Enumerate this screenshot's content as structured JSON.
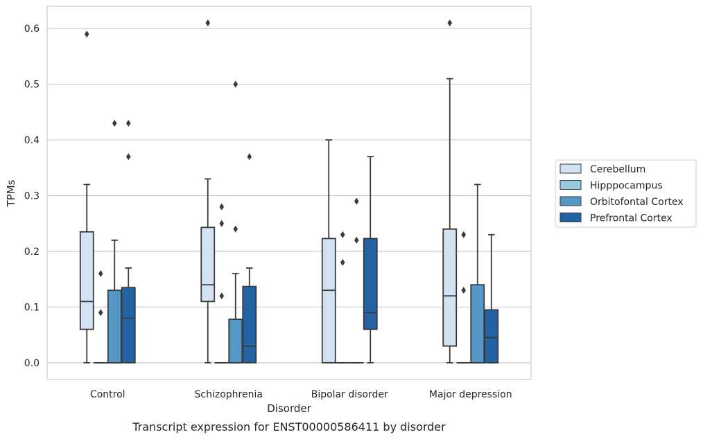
{
  "chart_data": {
    "type": "box",
    "title": "",
    "caption": "Transcript expression for ENST00000586411 by disorder",
    "xlabel": "Disorder",
    "ylabel": "TPMs",
    "ylim": [
      -0.03,
      0.64
    ],
    "yticks": [
      "0.0",
      "0.1",
      "0.2",
      "0.3",
      "0.4",
      "0.5",
      "0.6"
    ],
    "grid": "horizontal",
    "legend_position": "right",
    "categories": [
      "Control",
      "Schizophrenia",
      "Bipolar disorder",
      "Major depression"
    ],
    "series": [
      {
        "name": "Cerebellum",
        "color": "#d2e2f2",
        "boxes": [
          {
            "whislo": 0.0,
            "q1": 0.06,
            "med": 0.11,
            "q3": 0.235,
            "whishi": 0.32,
            "fliers": [
              0.59
            ]
          },
          {
            "whislo": 0.0,
            "q1": 0.11,
            "med": 0.14,
            "q3": 0.243,
            "whishi": 0.33,
            "fliers": [
              0.61
            ]
          },
          {
            "whislo": 0.0,
            "q1": 0.0,
            "med": 0.13,
            "q3": 0.223,
            "whishi": 0.4,
            "fliers": []
          },
          {
            "whislo": 0.0,
            "q1": 0.03,
            "med": 0.12,
            "q3": 0.24,
            "whishi": 0.51,
            "fliers": [
              0.61
            ]
          }
        ]
      },
      {
        "name": "Hipppocampus",
        "color": "#9ac7e0",
        "boxes": [
          {
            "whislo": 0.0,
            "q1": 0.0,
            "med": 0.0,
            "q3": 0.0,
            "whishi": 0.0,
            "fliers": [
              0.16,
              0.09
            ]
          },
          {
            "whislo": 0.0,
            "q1": 0.0,
            "med": 0.0,
            "q3": 0.0,
            "whishi": 0.0,
            "fliers": [
              0.28,
              0.25,
              0.12
            ]
          },
          {
            "whislo": 0.0,
            "q1": 0.0,
            "med": 0.0,
            "q3": 0.0,
            "whishi": 0.0,
            "fliers": [
              0.23,
              0.18
            ]
          },
          {
            "whislo": 0.0,
            "q1": 0.0,
            "med": 0.0,
            "q3": 0.0,
            "whishi": 0.0,
            "fliers": [
              0.23,
              0.13
            ]
          }
        ]
      },
      {
        "name": "Orbitofontal Cortex",
        "color": "#5597c6",
        "boxes": [
          {
            "whislo": 0.0,
            "q1": 0.0,
            "med": 0.0,
            "q3": 0.13,
            "whishi": 0.22,
            "fliers": [
              0.43
            ]
          },
          {
            "whislo": 0.0,
            "q1": 0.0,
            "med": 0.0,
            "q3": 0.078,
            "whishi": 0.16,
            "fliers": [
              0.5,
              0.24
            ]
          },
          {
            "whislo": 0.0,
            "q1": 0.0,
            "med": 0.0,
            "q3": 0.0,
            "whishi": 0.0,
            "fliers": [
              0.29,
              0.22
            ]
          },
          {
            "whislo": 0.0,
            "q1": 0.0,
            "med": 0.0,
            "q3": 0.14,
            "whishi": 0.32,
            "fliers": []
          }
        ]
      },
      {
        "name": "Prefrontal Cortex",
        "color": "#2363a4",
        "boxes": [
          {
            "whislo": 0.0,
            "q1": 0.0,
            "med": 0.08,
            "q3": 0.135,
            "whishi": 0.17,
            "fliers": [
              0.43,
              0.37
            ]
          },
          {
            "whislo": 0.0,
            "q1": 0.0,
            "med": 0.03,
            "q3": 0.137,
            "whishi": 0.17,
            "fliers": [
              0.37
            ]
          },
          {
            "whislo": 0.0,
            "q1": 0.06,
            "med": 0.09,
            "q3": 0.223,
            "whishi": 0.37,
            "fliers": []
          },
          {
            "whislo": 0.0,
            "q1": 0.0,
            "med": 0.045,
            "q3": 0.095,
            "whishi": 0.23,
            "fliers": []
          }
        ]
      }
    ]
  }
}
